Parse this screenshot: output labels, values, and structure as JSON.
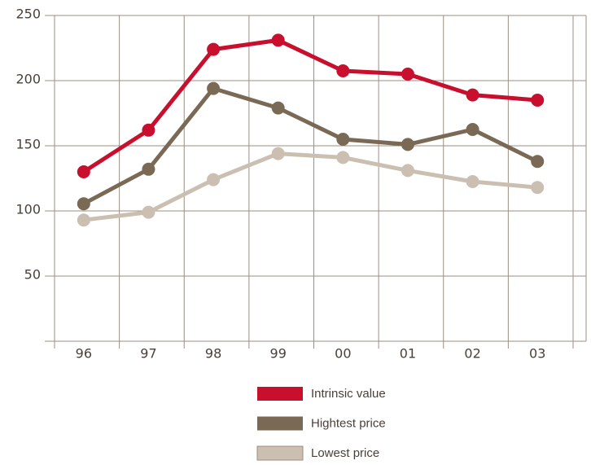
{
  "chart_data": {
    "type": "line",
    "categories": [
      "96",
      "97",
      "98",
      "99",
      "00",
      "01",
      "02",
      "03"
    ],
    "series": [
      {
        "name": "Intrinsic value",
        "color": "#c8102e",
        "values": [
          130,
          162,
          224,
          231,
          207.5,
          205,
          189,
          185
        ]
      },
      {
        "name": "Hightest price",
        "color": "#7a6a55",
        "values": [
          105.5,
          132,
          194,
          179,
          155,
          151,
          162.5,
          138
        ]
      },
      {
        "name": "Lowest price",
        "color": "#cbbfb1",
        "values": [
          93,
          99,
          124,
          144,
          141,
          131,
          122.5,
          118
        ]
      }
    ],
    "ylim": [
      0,
      250
    ],
    "yticks": [
      50,
      100,
      150,
      200,
      250
    ],
    "grid": true
  }
}
